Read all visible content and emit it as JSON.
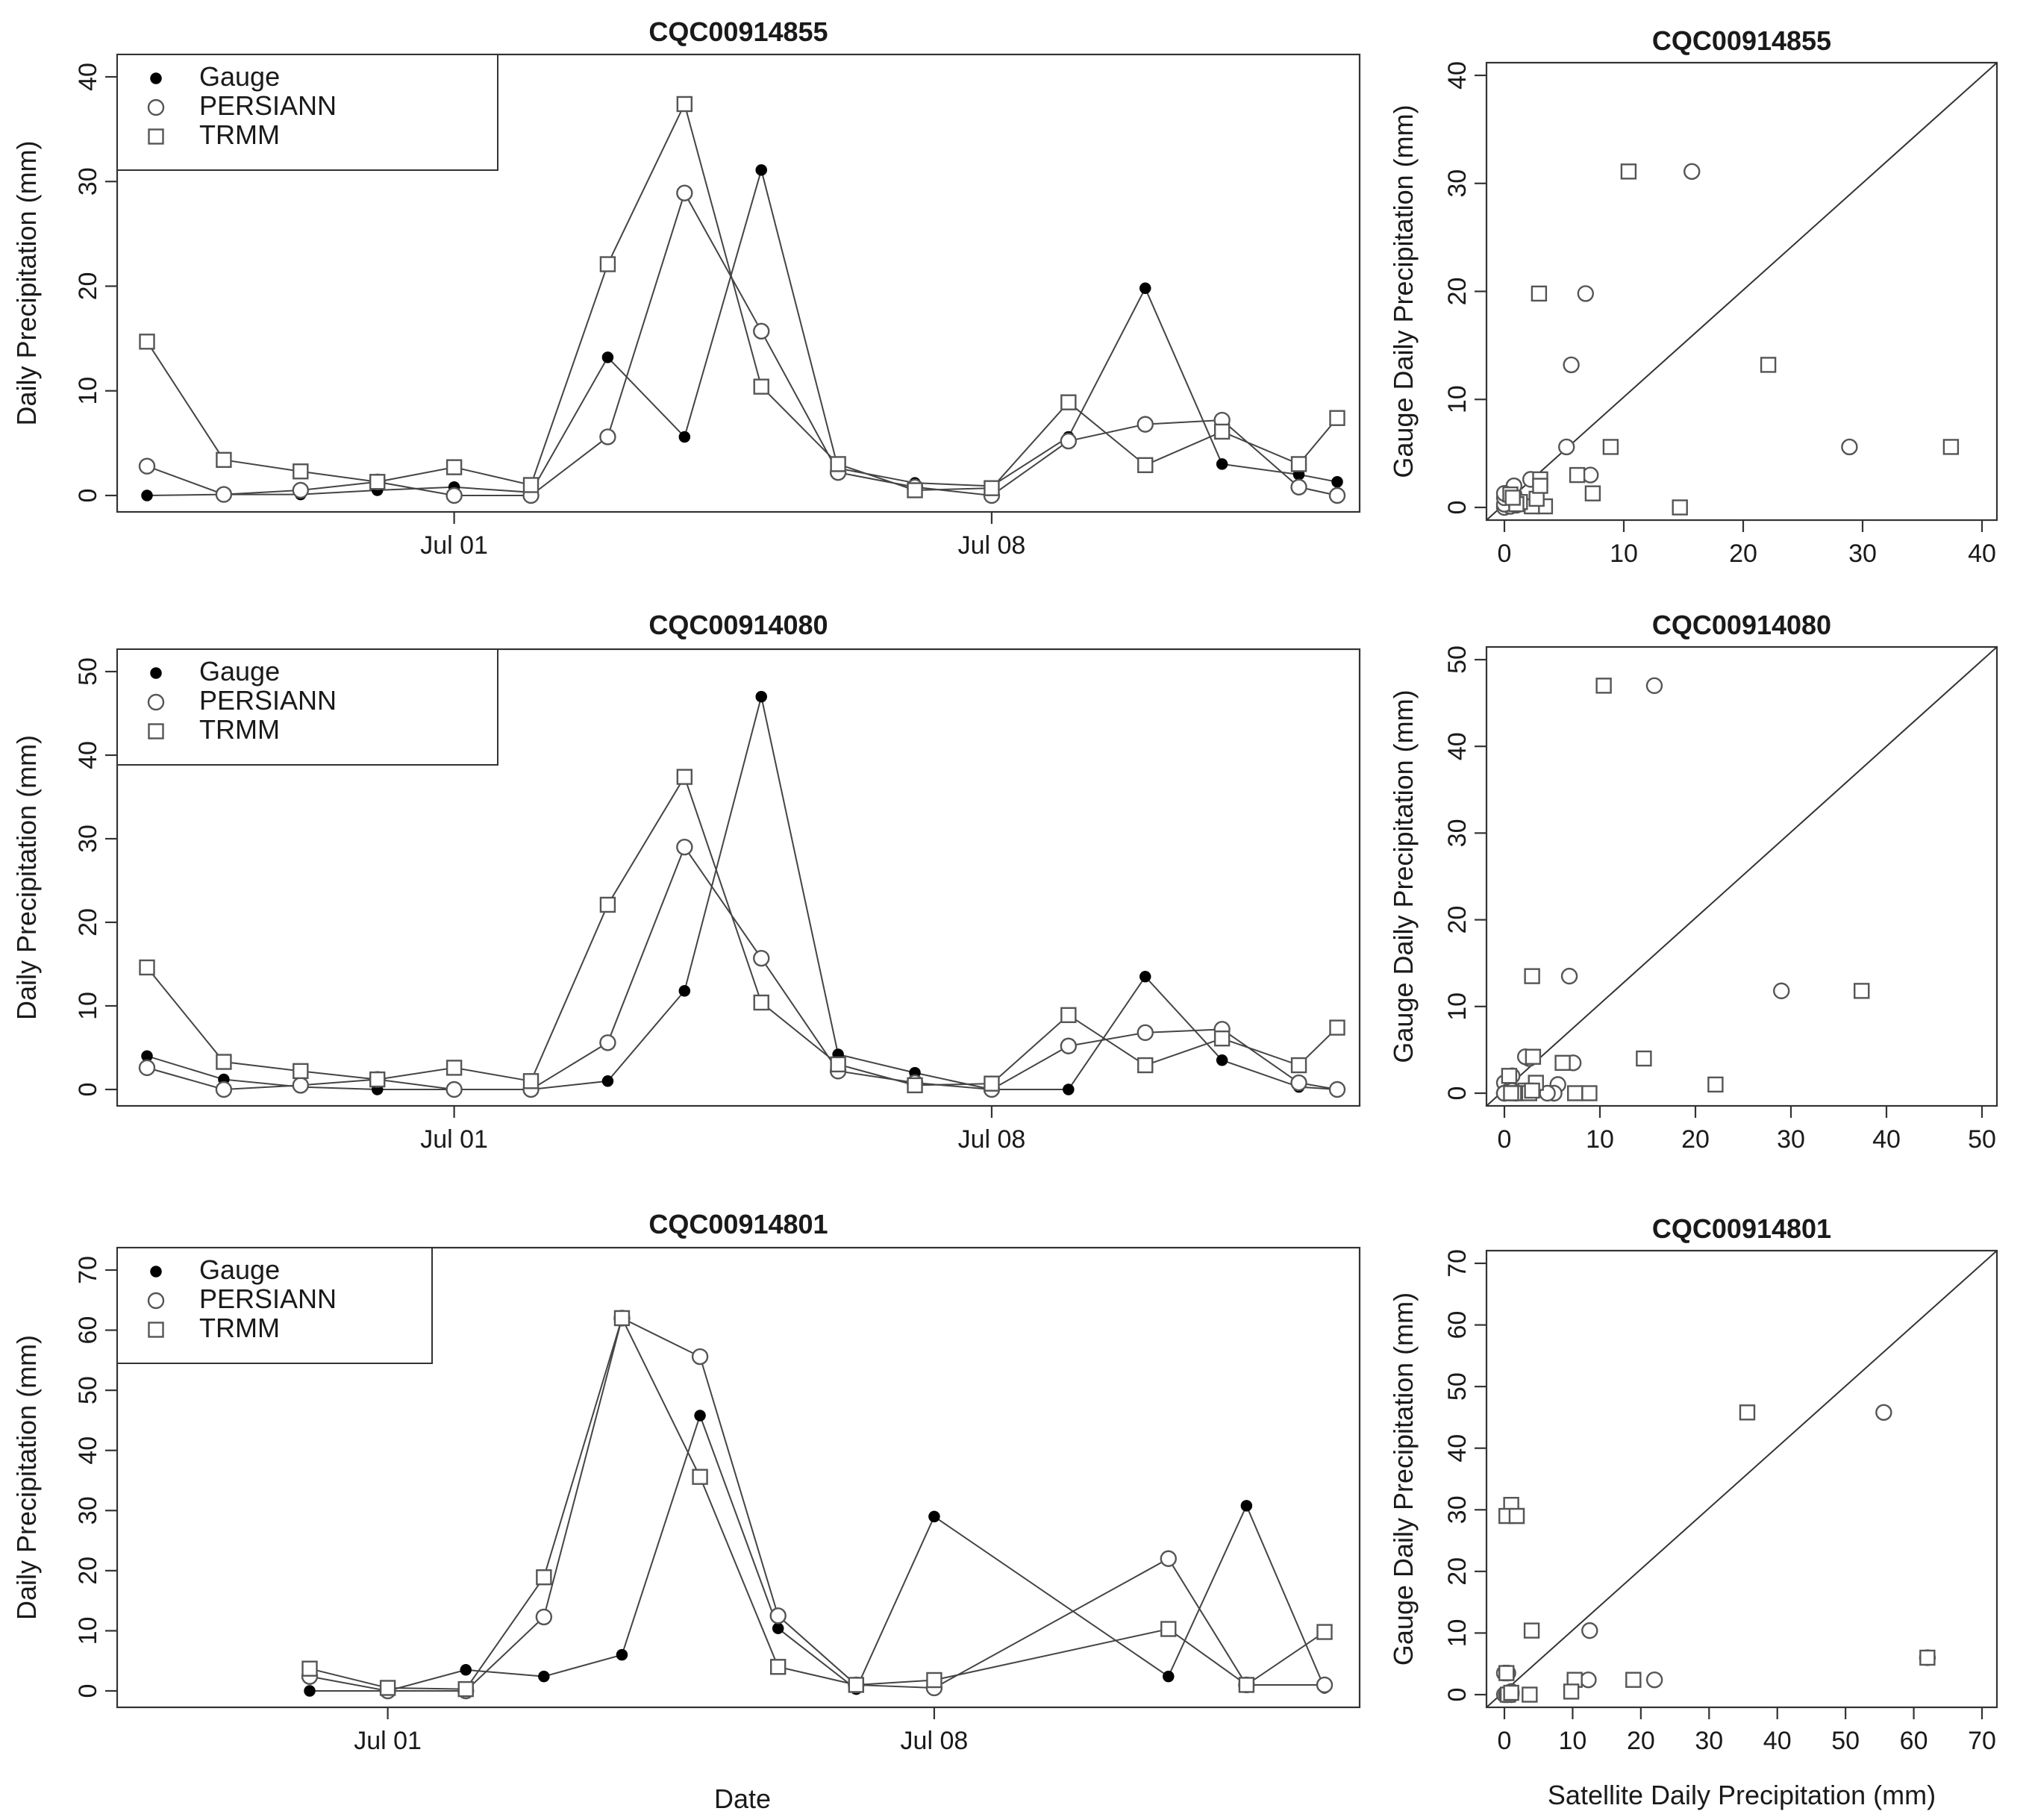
{
  "figure": {
    "x_label": "Date",
    "scatter_x_label": "Satellite Daily Precipitation (mm)"
  },
  "chart_data": [
    {
      "type": "line",
      "title": "CQC00914855",
      "xlabel": "",
      "ylabel": "Daily Precipitation (mm)",
      "x_ticks": [
        "Jul 01",
        "Jul 08"
      ],
      "x_tick_days": [
        1,
        8
      ],
      "xlim": [
        -3.6,
        12.6
      ],
      "ylim": [
        0,
        40
      ],
      "yticks": [
        0,
        10,
        20,
        30,
        40
      ],
      "legend": [
        "Gauge",
        "PERSIANN",
        "TRMM"
      ],
      "x": [
        -3,
        -2,
        -1,
        0,
        1,
        2,
        3,
        4,
        5,
        6,
        7,
        8,
        9,
        10,
        11,
        12
      ],
      "series": [
        {
          "name": "Gauge",
          "marker": "filled-circle",
          "values": [
            0,
            0.1,
            0.1,
            0.5,
            0.8,
            0.3,
            13.2,
            5.6,
            31.1,
            2.6,
            1.2,
            0.9,
            5.6,
            19.8,
            3,
            2
          ]
        },
        {
          "name": "PERSIANN",
          "marker": "open-circle",
          "values": [
            2.8,
            0.1,
            0.5,
            1.3,
            0,
            0,
            5.6,
            28.9,
            15.7,
            2.2,
            0.8,
            0,
            5.2,
            6.8,
            7.2,
            0.8
          ]
        },
        {
          "name": "TRMM",
          "marker": "open-square",
          "values": [
            14.7,
            3.4,
            2.3,
            1.3,
            2.7,
            1.0,
            22.1,
            37.4,
            10.4,
            3.0,
            0.5,
            0.7,
            8.9,
            2.9,
            6.1,
            3.0
          ]
        }
      ],
      "last_point": {
        "day": 12.5,
        "Gauge": 1.3,
        "PERSIANN": 0,
        "TRMM": 7.4
      }
    },
    {
      "type": "scatter",
      "title": "CQC00914855",
      "xlabel": "",
      "ylabel": "Gauge Daily Precipitation (mm)",
      "xlim": [
        0,
        40
      ],
      "ylim": [
        0,
        40
      ],
      "xticks": [
        0,
        10,
        20,
        30,
        40
      ],
      "yticks": [
        0,
        10,
        20,
        30,
        40
      ],
      "reference_line": "y = x",
      "series": [
        {
          "name": "PERSIANN",
          "marker": "open-circle",
          "points": [
            [
              0,
              0
            ],
            [
              0.5,
              0.1
            ],
            [
              1.3,
              0.5
            ],
            [
              0.1,
              0.8
            ],
            [
              0,
              0.3
            ],
            [
              5.6,
              13.2
            ],
            [
              28.9,
              5.6
            ],
            [
              15.7,
              31.1
            ],
            [
              2.2,
              2.6
            ],
            [
              0.8,
              1.2
            ],
            [
              0,
              0.9
            ],
            [
              5.2,
              5.6
            ],
            [
              6.8,
              19.8
            ],
            [
              7.2,
              3
            ],
            [
              0.8,
              2
            ],
            [
              0,
              1.3
            ],
            [
              1,
              0.2
            ]
          ]
        },
        {
          "name": "TRMM",
          "marker": "open-square",
          "points": [
            [
              14.7,
              0
            ],
            [
              3.4,
              0.1
            ],
            [
              2.3,
              0.1
            ],
            [
              1.3,
              0.5
            ],
            [
              2.7,
              0.8
            ],
            [
              1.0,
              0.3
            ],
            [
              22.1,
              13.2
            ],
            [
              37.4,
              5.6
            ],
            [
              10.4,
              31.1
            ],
            [
              3.0,
              2.6
            ],
            [
              0.5,
              1.2
            ],
            [
              0.7,
              0.9
            ],
            [
              8.9,
              5.6
            ],
            [
              2.9,
              19.8
            ],
            [
              6.1,
              3
            ],
            [
              3.0,
              2
            ],
            [
              7.4,
              1.3
            ]
          ]
        }
      ]
    },
    {
      "type": "line",
      "title": "CQC00914080",
      "xlabel": "",
      "ylabel": "Daily Precipitation (mm)",
      "x_ticks": [
        "Jul 01",
        "Jul 08"
      ],
      "x_tick_days": [
        1,
        8
      ],
      "xlim": [
        -3.6,
        12.6
      ],
      "ylim": [
        0,
        50
      ],
      "yticks": [
        0,
        10,
        20,
        30,
        40,
        50
      ],
      "legend": [
        "Gauge",
        "PERSIANN",
        "TRMM"
      ],
      "x": [
        -3,
        -2,
        -1,
        0,
        1,
        2,
        3,
        4,
        5,
        6,
        7,
        8,
        9,
        10,
        11,
        12
      ],
      "series": [
        {
          "name": "Gauge",
          "marker": "filled-circle",
          "values": [
            4,
            1.2,
            0.3,
            0,
            0,
            0,
            1,
            11.8,
            47,
            4.2,
            2,
            0,
            0,
            13.5,
            3.5,
            0.3
          ]
        },
        {
          "name": "PERSIANN",
          "marker": "open-circle",
          "values": [
            2.6,
            0,
            0.5,
            1.2,
            0,
            0,
            5.6,
            29,
            15.7,
            2.2,
            0.8,
            0,
            5.2,
            6.8,
            7.2,
            0.8
          ]
        },
        {
          "name": "TRMM",
          "marker": "open-square",
          "values": [
            14.6,
            3.3,
            2.2,
            1.2,
            2.6,
            1.0,
            22.1,
            37.4,
            10.4,
            3.0,
            0.5,
            0.7,
            8.9,
            2.9,
            6.1,
            2.9
          ]
        }
      ],
      "last_point": {
        "day": 12.5,
        "Gauge": 0,
        "PERSIANN": 0,
        "TRMM": 7.4
      }
    },
    {
      "type": "scatter",
      "title": "CQC00914080",
      "xlabel": "",
      "ylabel": "Gauge Daily Precipitation (mm)",
      "xlim": [
        0,
        50
      ],
      "ylim": [
        0,
        50
      ],
      "xticks": [
        0,
        10,
        20,
        30,
        40,
        50
      ],
      "yticks": [
        0,
        10,
        20,
        30,
        40,
        50
      ],
      "reference_line": "y = x",
      "series": [
        {
          "name": "PERSIANN",
          "marker": "open-circle",
          "points": [
            [
              2.6,
              4
            ],
            [
              0,
              1.2
            ],
            [
              0.5,
              0.3
            ],
            [
              1.2,
              0
            ],
            [
              0,
              0
            ],
            [
              5.6,
              1
            ],
            [
              29,
              11.8
            ],
            [
              15.7,
              47
            ],
            [
              2.2,
              4.2
            ],
            [
              0.8,
              2
            ],
            [
              0,
              0
            ],
            [
              5.2,
              0
            ],
            [
              6.8,
              13.5
            ],
            [
              7.2,
              3.5
            ],
            [
              0.8,
              0.3
            ],
            [
              0,
              0
            ],
            [
              4.5,
              0
            ]
          ]
        },
        {
          "name": "TRMM",
          "marker": "open-square",
          "points": [
            [
              14.6,
              4
            ],
            [
              3.3,
              1.2
            ],
            [
              2.2,
              0.3
            ],
            [
              1.2,
              0
            ],
            [
              2.6,
              0
            ],
            [
              1.0,
              0
            ],
            [
              22.1,
              1
            ],
            [
              37.4,
              11.8
            ],
            [
              10.4,
              47
            ],
            [
              3.0,
              4.2
            ],
            [
              0.5,
              2
            ],
            [
              0.7,
              0
            ],
            [
              8.9,
              0
            ],
            [
              2.9,
              13.5
            ],
            [
              6.1,
              3.5
            ],
            [
              2.9,
              0.3
            ],
            [
              7.4,
              0
            ]
          ]
        }
      ]
    },
    {
      "type": "line",
      "title": "CQC00914801",
      "xlabel": "Date",
      "ylabel": "Daily Precipitation (mm)",
      "x_ticks": [
        "Jul 01",
        "Jul 08"
      ],
      "x_tick_days": [
        1,
        8
      ],
      "xlim": [
        -3.6,
        12.6
      ],
      "ylim": [
        0,
        70
      ],
      "yticks": [
        0,
        10,
        20,
        30,
        40,
        50,
        60,
        70
      ],
      "legend": [
        "Gauge",
        "PERSIANN",
        "TRMM"
      ],
      "x": [
        0,
        1,
        2,
        3,
        4,
        5,
        6,
        7,
        8,
        11,
        12,
        13
      ],
      "series": [
        {
          "name": "Gauge",
          "marker": "filled-circle",
          "values": [
            0,
            0,
            3.5,
            2.4,
            6,
            45.8,
            10.4,
            0.3,
            29,
            2.4,
            30.8,
            0.5
          ]
        },
        {
          "name": "PERSIANN",
          "marker": "open-circle",
          "values": [
            2.4,
            0,
            0,
            12.3,
            62,
            55.6,
            12.5,
            1,
            0.5,
            22,
            1,
            1
          ]
        },
        {
          "name": "TRMM",
          "marker": "open-square",
          "values": [
            3.7,
            0.5,
            0.3,
            18.9,
            62,
            35.6,
            4,
            1,
            1.8,
            10.3,
            1,
            9.8
          ]
        }
      ]
    },
    {
      "type": "scatter",
      "title": "CQC00914801",
      "xlabel": "Satellite Daily Precipitation (mm)",
      "ylabel": "Gauge Daily Precipitation (mm)",
      "xlim": [
        0,
        70
      ],
      "ylim": [
        0,
        70
      ],
      "xticks": [
        0,
        10,
        20,
        30,
        40,
        50,
        60,
        70
      ],
      "yticks": [
        0,
        10,
        20,
        30,
        40,
        50,
        60,
        70
      ],
      "reference_line": "y = x",
      "series": [
        {
          "name": "PERSIANN",
          "marker": "open-circle",
          "points": [
            [
              0,
              0
            ],
            [
              0.3,
              0
            ],
            [
              0,
              3.5
            ],
            [
              12.3,
              2.4
            ],
            [
              62,
              6
            ],
            [
              55.6,
              45.8
            ],
            [
              12.5,
              10.4
            ],
            [
              1,
              0.3
            ],
            [
              0.5,
              0
            ],
            [
              22,
              2.4
            ],
            [
              1,
              0
            ],
            [
              1,
              0.5
            ],
            [
              0.5,
              3.5
            ]
          ]
        },
        {
          "name": "TRMM",
          "marker": "open-square",
          "points": [
            [
              3.7,
              0
            ],
            [
              0.5,
              0
            ],
            [
              0.3,
              3.5
            ],
            [
              18.9,
              2.4
            ],
            [
              62,
              6
            ],
            [
              35.6,
              45.8
            ],
            [
              4,
              10.4
            ],
            [
              1,
              0.3
            ],
            [
              1.8,
              29
            ],
            [
              10.3,
              2.4
            ],
            [
              1,
              30.8
            ],
            [
              9.8,
              0.5
            ],
            [
              0.3,
              29
            ],
            [
              1.8,
              29
            ]
          ]
        }
      ]
    }
  ]
}
